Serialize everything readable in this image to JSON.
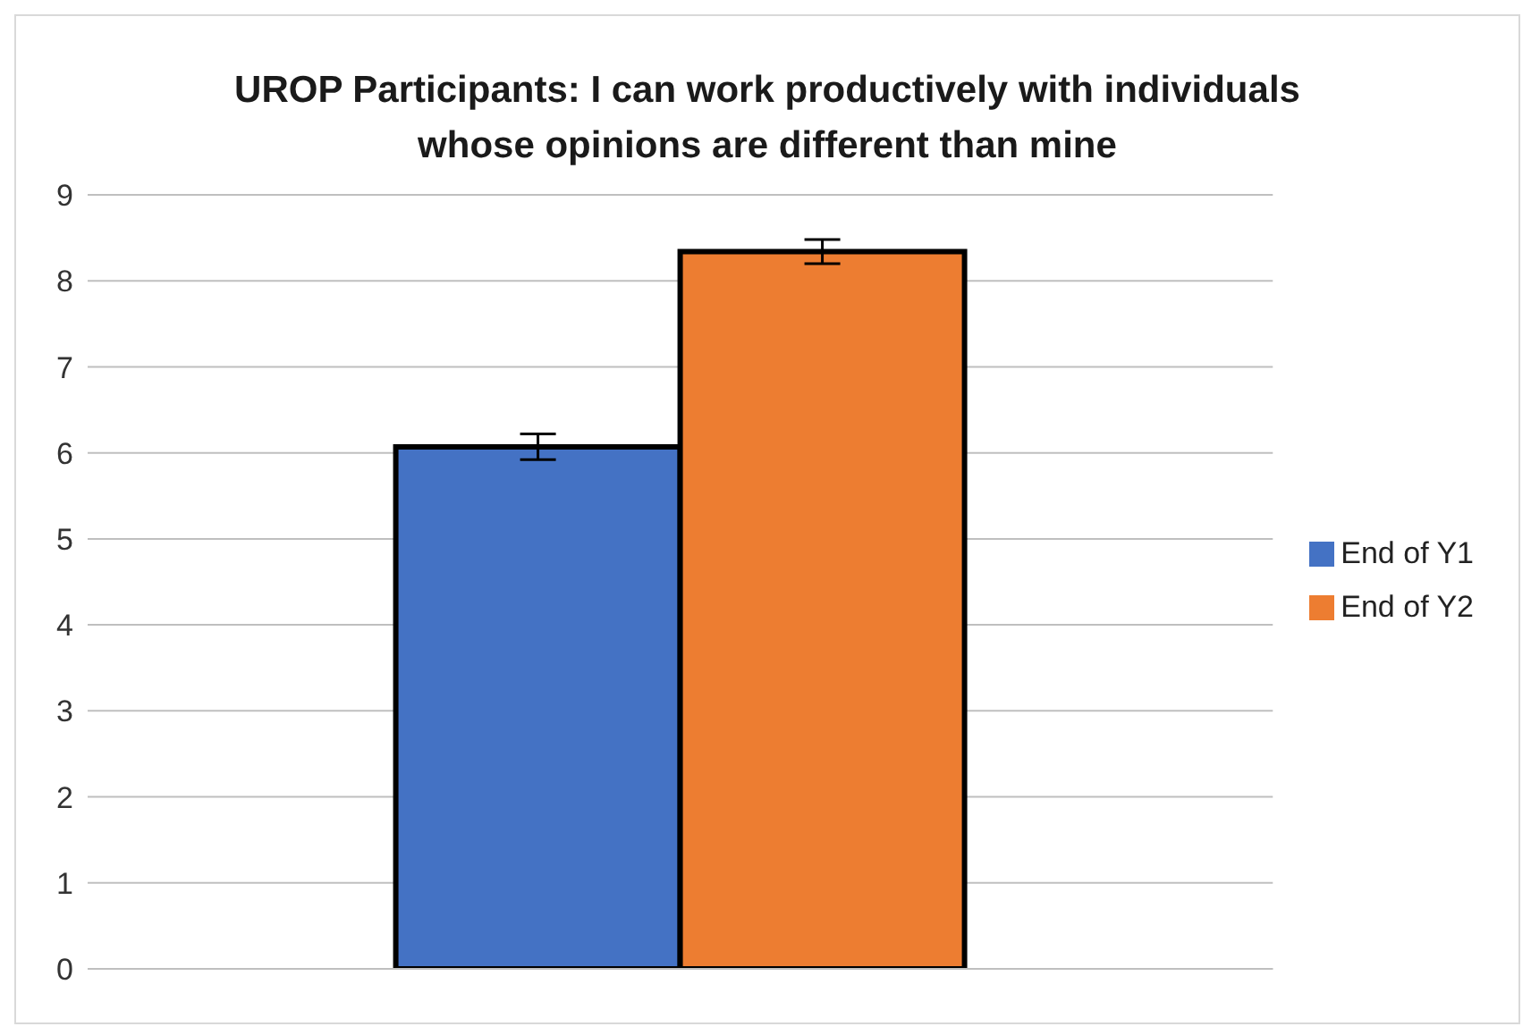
{
  "chart_data": {
    "type": "bar",
    "title": "UROP Participants: I can work productively with individuals whose opinions are different than mine",
    "categories": [
      null
    ],
    "series": [
      {
        "name": "End of Y1",
        "color": "#4472c4",
        "values": [
          6.07
        ],
        "errors": [
          0.15
        ]
      },
      {
        "name": "End of Y2",
        "color": "#ed7d31",
        "values": [
          8.34
        ],
        "errors": [
          0.14
        ]
      }
    ],
    "ylim": [
      0,
      9
    ],
    "yticks": [
      0,
      1,
      2,
      3,
      4,
      5,
      6,
      7,
      8,
      9
    ],
    "grid": "y",
    "legend": "right"
  }
}
